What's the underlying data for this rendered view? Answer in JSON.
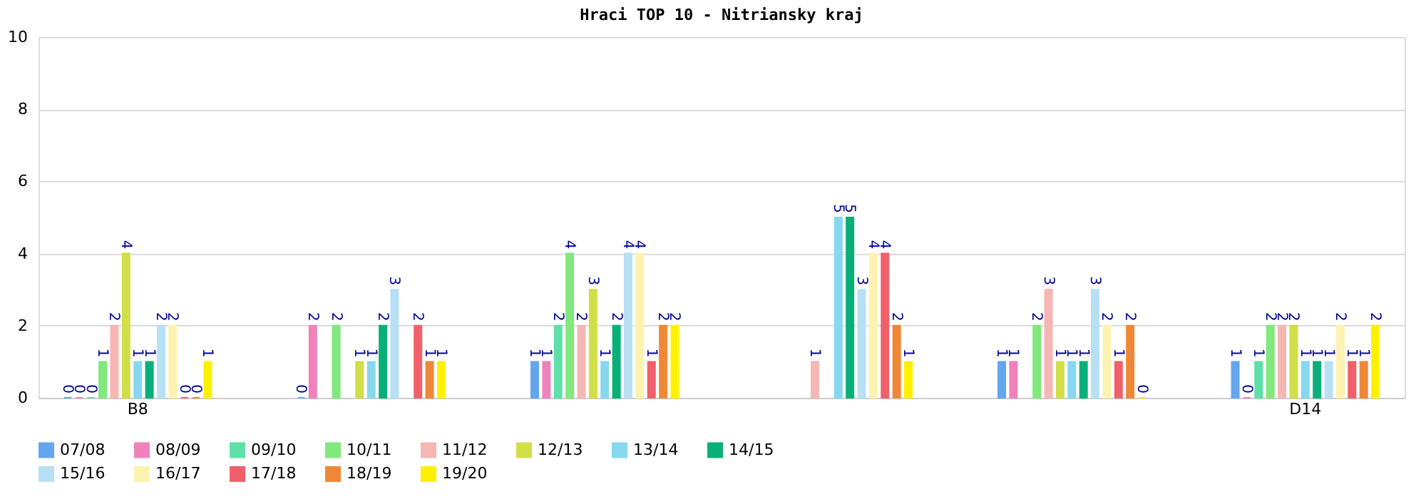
{
  "chart_data": {
    "type": "bar",
    "title": "Hraci TOP 10 - Nitriansky kraj",
    "categories": [
      "B8",
      null,
      null,
      null,
      null,
      "D14"
    ],
    "series": [
      {
        "name": "07/08",
        "color": "#63a6ee",
        "values": [
          0,
          0,
          1,
          null,
          1,
          1
        ]
      },
      {
        "name": "08/09",
        "color": "#f082bb",
        "values": [
          0,
          2,
          1,
          null,
          1,
          0
        ]
      },
      {
        "name": "09/10",
        "color": "#5ee0a8",
        "values": [
          0,
          null,
          2,
          null,
          null,
          1
        ]
      },
      {
        "name": "10/11",
        "color": "#80e87c",
        "values": [
          1,
          2,
          4,
          null,
          2,
          2
        ]
      },
      {
        "name": "11/12",
        "color": "#f5b6b4",
        "values": [
          2,
          null,
          2,
          1,
          3,
          2
        ]
      },
      {
        "name": "12/13",
        "color": "#d0de48",
        "values": [
          4,
          1,
          3,
          null,
          1,
          2
        ]
      },
      {
        "name": "13/14",
        "color": "#87d7ee",
        "values": [
          1,
          1,
          1,
          5,
          1,
          1
        ]
      },
      {
        "name": "14/15",
        "color": "#08b078",
        "values": [
          1,
          2,
          2,
          5,
          1,
          1
        ]
      },
      {
        "name": "15/16",
        "color": "#b8e0f5",
        "values": [
          2,
          3,
          4,
          3,
          3,
          1
        ]
      },
      {
        "name": "16/17",
        "color": "#fdf2b0",
        "values": [
          2,
          null,
          4,
          4,
          2,
          2
        ]
      },
      {
        "name": "17/18",
        "color": "#f0606a",
        "values": [
          0,
          2,
          1,
          4,
          1,
          1
        ]
      },
      {
        "name": "18/19",
        "color": "#ee8838",
        "values": [
          0,
          1,
          2,
          2,
          2,
          1
        ]
      },
      {
        "name": "19/20",
        "color": "#fff000",
        "values": [
          1,
          1,
          2,
          1,
          0,
          2
        ]
      }
    ],
    "ylim": [
      0,
      10
    ],
    "yticks": [
      0,
      2,
      4,
      6,
      8,
      10
    ],
    "grid": "y",
    "legend": "bottom",
    "data_labels": true
  }
}
